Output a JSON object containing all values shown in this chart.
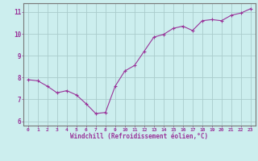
{
  "x": [
    0,
    1,
    2,
    3,
    4,
    5,
    6,
    7,
    8,
    9,
    10,
    11,
    12,
    13,
    14,
    15,
    16,
    17,
    18,
    19,
    20,
    21,
    22,
    23
  ],
  "y": [
    7.9,
    7.85,
    7.6,
    7.3,
    7.4,
    7.2,
    6.8,
    6.35,
    6.4,
    7.6,
    8.3,
    8.55,
    9.2,
    9.85,
    9.97,
    10.25,
    10.35,
    10.15,
    10.6,
    10.65,
    10.6,
    10.85,
    10.95,
    11.15
  ],
  "xlabel": "Windchill (Refroidissement éolien,°C)",
  "ylim": [
    5.8,
    11.4
  ],
  "xlim": [
    -0.5,
    23.5
  ],
  "yticks": [
    6,
    7,
    8,
    9,
    10,
    11
  ],
  "xticks": [
    0,
    1,
    2,
    3,
    4,
    5,
    6,
    7,
    8,
    9,
    10,
    11,
    12,
    13,
    14,
    15,
    16,
    17,
    18,
    19,
    20,
    21,
    22,
    23
  ],
  "line_color": "#993399",
  "marker_color": "#993399",
  "bg_color": "#cceeee",
  "grid_color": "#aacccc",
  "tick_color": "#993399",
  "label_color": "#993399",
  "border_color": "#777777",
  "tick_fontsize": 4.5,
  "xlabel_fontsize": 5.5
}
